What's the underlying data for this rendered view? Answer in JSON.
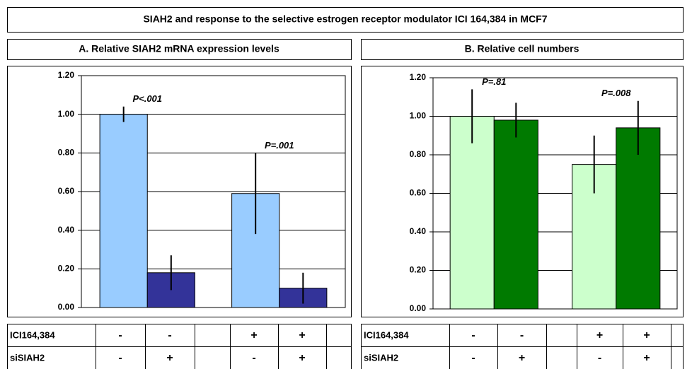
{
  "title": "SIAH2 and response to the selective estrogen receptor modulator ICI 164,384 in MCF7",
  "chart_data": [
    {
      "type": "bar",
      "title": "A. Relative SIAH2 mRNA expression levels",
      "values": [
        1.0,
        0.18,
        0.59,
        0.1
      ],
      "errors": [
        0.04,
        0.09,
        0.21,
        0.08
      ],
      "colors": [
        "#99ccff",
        "#333399",
        "#99ccff",
        "#333399"
      ],
      "ylim": [
        0,
        1.2
      ],
      "yticks": [
        {
          "value": 0,
          "label": "0.00"
        },
        {
          "value": 0.2,
          "label": "0.20"
        },
        {
          "value": 0.4,
          "label": "0.40"
        },
        {
          "value": 0.6,
          "label": "0.60"
        },
        {
          "value": 0.8,
          "label": "0.80"
        },
        {
          "value": 1.0,
          "label": "1.00"
        },
        {
          "value": 1.2,
          "label": "1.20"
        }
      ],
      "grid": true,
      "annotations": [
        "P<.001",
        "P=.001"
      ]
    },
    {
      "type": "bar",
      "title": "B.  Relative cell numbers",
      "values": [
        1.0,
        0.98,
        0.75,
        0.94
      ],
      "errors": [
        0.14,
        0.09,
        0.15,
        0.14
      ],
      "colors": [
        "#ccffcc",
        "#007a00",
        "#ccffcc",
        "#007a00"
      ],
      "ylim": [
        0,
        1.2
      ],
      "yticks": [
        {
          "value": 0,
          "label": "0.00"
        },
        {
          "value": 0.2,
          "label": "0.20"
        },
        {
          "value": 0.4,
          "label": "0.40"
        },
        {
          "value": 0.6,
          "label": "0.60"
        },
        {
          "value": 0.8,
          "label": "0.80"
        },
        {
          "value": 1.0,
          "label": "1.00"
        },
        {
          "value": 1.2,
          "label": "1.20"
        }
      ],
      "grid": true,
      "annotations": [
        "P=.81",
        "P=.008"
      ]
    }
  ],
  "tables": [
    {
      "rows": [
        [
          "ICI164,384",
          "-",
          "-",
          "+",
          "+"
        ],
        [
          "siSIAH2",
          "-",
          "+",
          "-",
          "+"
        ]
      ]
    },
    {
      "rows": [
        [
          "ICI164,384",
          "-",
          "-",
          "+",
          "+"
        ],
        [
          "siSIAH2",
          "-",
          "+",
          "-",
          "+"
        ]
      ]
    }
  ]
}
